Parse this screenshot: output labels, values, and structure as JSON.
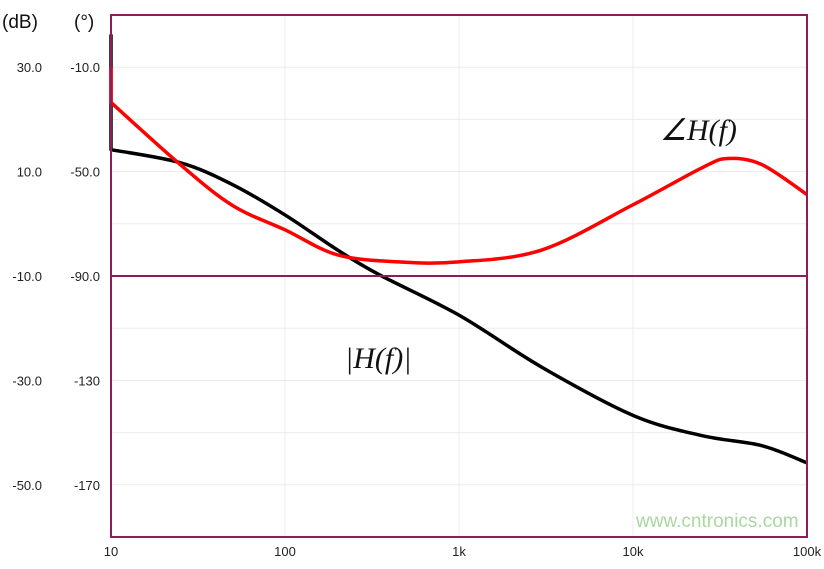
{
  "chart_data": {
    "type": "line",
    "x_scale": "log",
    "xlim": [
      10,
      100000
    ],
    "x_ticks": [
      "10",
      "100",
      "1k",
      "10k",
      "100k"
    ],
    "y_left": {
      "unit": "(dB)",
      "ylim": [
        -60,
        40
      ],
      "ticks": [
        "30.0",
        "10.0",
        "-10.0",
        "-30.0",
        "-50.0"
      ],
      "tick_values": [
        30,
        10,
        -10,
        -30,
        -50
      ]
    },
    "y_right": {
      "unit": "(°)",
      "ylim": [
        -190,
        10
      ],
      "ticks": [
        "-10.0",
        "-50.0",
        "-90.0",
        "-130",
        "-170"
      ],
      "tick_values": [
        -10,
        -50,
        -90,
        -130,
        -170
      ]
    },
    "grid": true,
    "reference_line_phase": -90,
    "series": [
      {
        "name": "|H(f)|",
        "axis": "left",
        "color": "#000000",
        "x": [
          10,
          10,
          25,
          50,
          100,
          200,
          350,
          1000,
          3000,
          10000,
          25000,
          55000,
          100000
        ],
        "y": [
          36.3,
          14.2,
          11.7,
          7.5,
          1.7,
          -5.0,
          -9.8,
          -17.5,
          -27.5,
          -36.7,
          -40.6,
          -42.5,
          -45.8
        ]
      },
      {
        "name": "∠H(f)",
        "axis": "right",
        "color": "#ff0000",
        "x": [
          10,
          10,
          25,
          50,
          100,
          200,
          450,
          1000,
          3000,
          10000,
          25000,
          35000,
          55000,
          100000
        ],
        "y": [
          -10,
          -23.5,
          -47.3,
          -63,
          -72.3,
          -81.9,
          -84.6,
          -84.6,
          -80,
          -62.7,
          -48.5,
          -45,
          -47.3,
          -58.8
        ]
      }
    ],
    "annotations": {
      "magnitude_label": "|H(f)|",
      "phase_label": "∠H(f)"
    }
  },
  "colors": {
    "frame": "#8b1e5a",
    "grid": "#ececec"
  },
  "watermark": "www.cntronics.com"
}
